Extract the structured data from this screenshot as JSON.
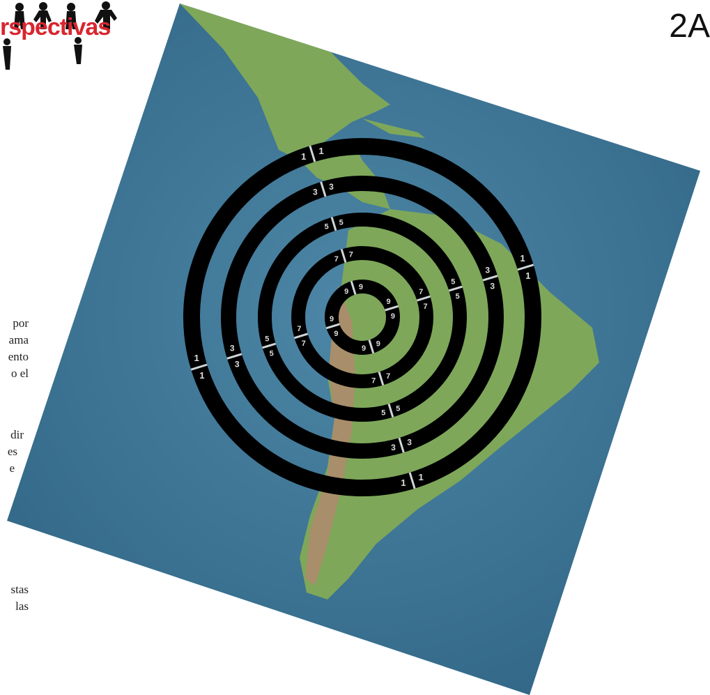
{
  "header": {
    "logo_text": "rspectivas",
    "page_label": "2A"
  },
  "text_fragments": [
    "por",
    "ama",
    "ento",
    "o el",
    "dir",
    "es",
    "e",
    "stas",
    "las"
  ],
  "target": {
    "ring_labels": [
      "1",
      "3",
      "5",
      "7",
      "9"
    ],
    "ring_color": "#000000",
    "gap_color": "#cfd6d8"
  },
  "map": {
    "ocean_color": "#3f7598",
    "land_green": "#7ea75a",
    "land_brown": "#a88e6a"
  }
}
